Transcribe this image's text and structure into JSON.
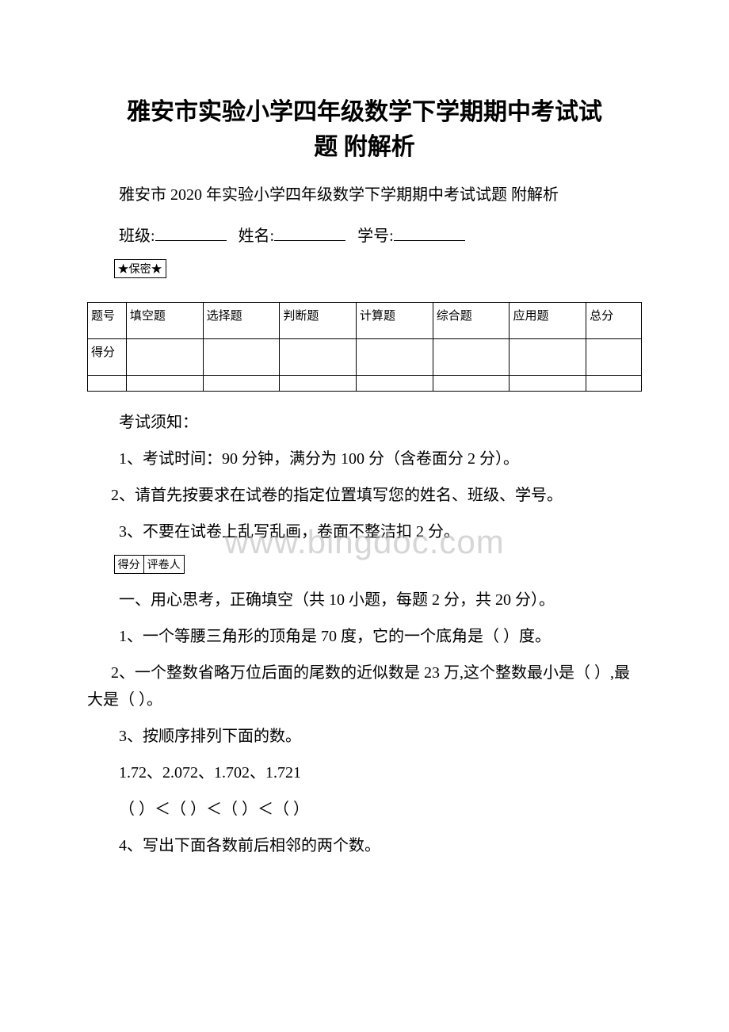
{
  "title_line1": "雅安市实验小学四年级数学下学期期中考试试",
  "title_line2": "题 附解析",
  "subtitle": "雅安市 2020 年实验小学四年级数学下学期期中考试试题 附解析",
  "info": {
    "class_label": "班级:",
    "name_label": "姓名:",
    "id_label": "学号:"
  },
  "secret": "★保密★",
  "score_table": {
    "row1": [
      "题号",
      "填空题",
      "选择题",
      "判断题",
      "计算题",
      "综合题",
      "应用题",
      "总分"
    ],
    "row2_label": "得分"
  },
  "notes_title": "考试须知：",
  "note1": "1、考试时间：90 分钟，满分为 100 分（含卷面分 2 分）。",
  "note2": "2、请首先按要求在试卷的指定位置填写您的姓名、班级、学号。",
  "note3": "3、不要在试卷上乱写乱画，卷面不整洁扣 2 分。",
  "grade_labels": {
    "score": "得分",
    "grader": "评卷人"
  },
  "section1": "一、用心思考，正确填空（共 10 小题，每题 2 分，共 20 分）。",
  "q1": "1、一个等腰三角形的顶角是 70 度，它的一个底角是（ ）度。",
  "q2": "2、一个整数省略万位后面的尾数的近似数是 23 万,这个整数最小是（ ）,最大是（ ）。",
  "q3a": "3、按顺序排列下面的数。",
  "q3b": "1.72、2.072、1.702、1.721",
  "q3c": "（ ）＜（ ）＜（ ）＜（ ）",
  "q4": "4、写出下面各数前后相邻的两个数。",
  "watermark": "www.bingdoc.com"
}
